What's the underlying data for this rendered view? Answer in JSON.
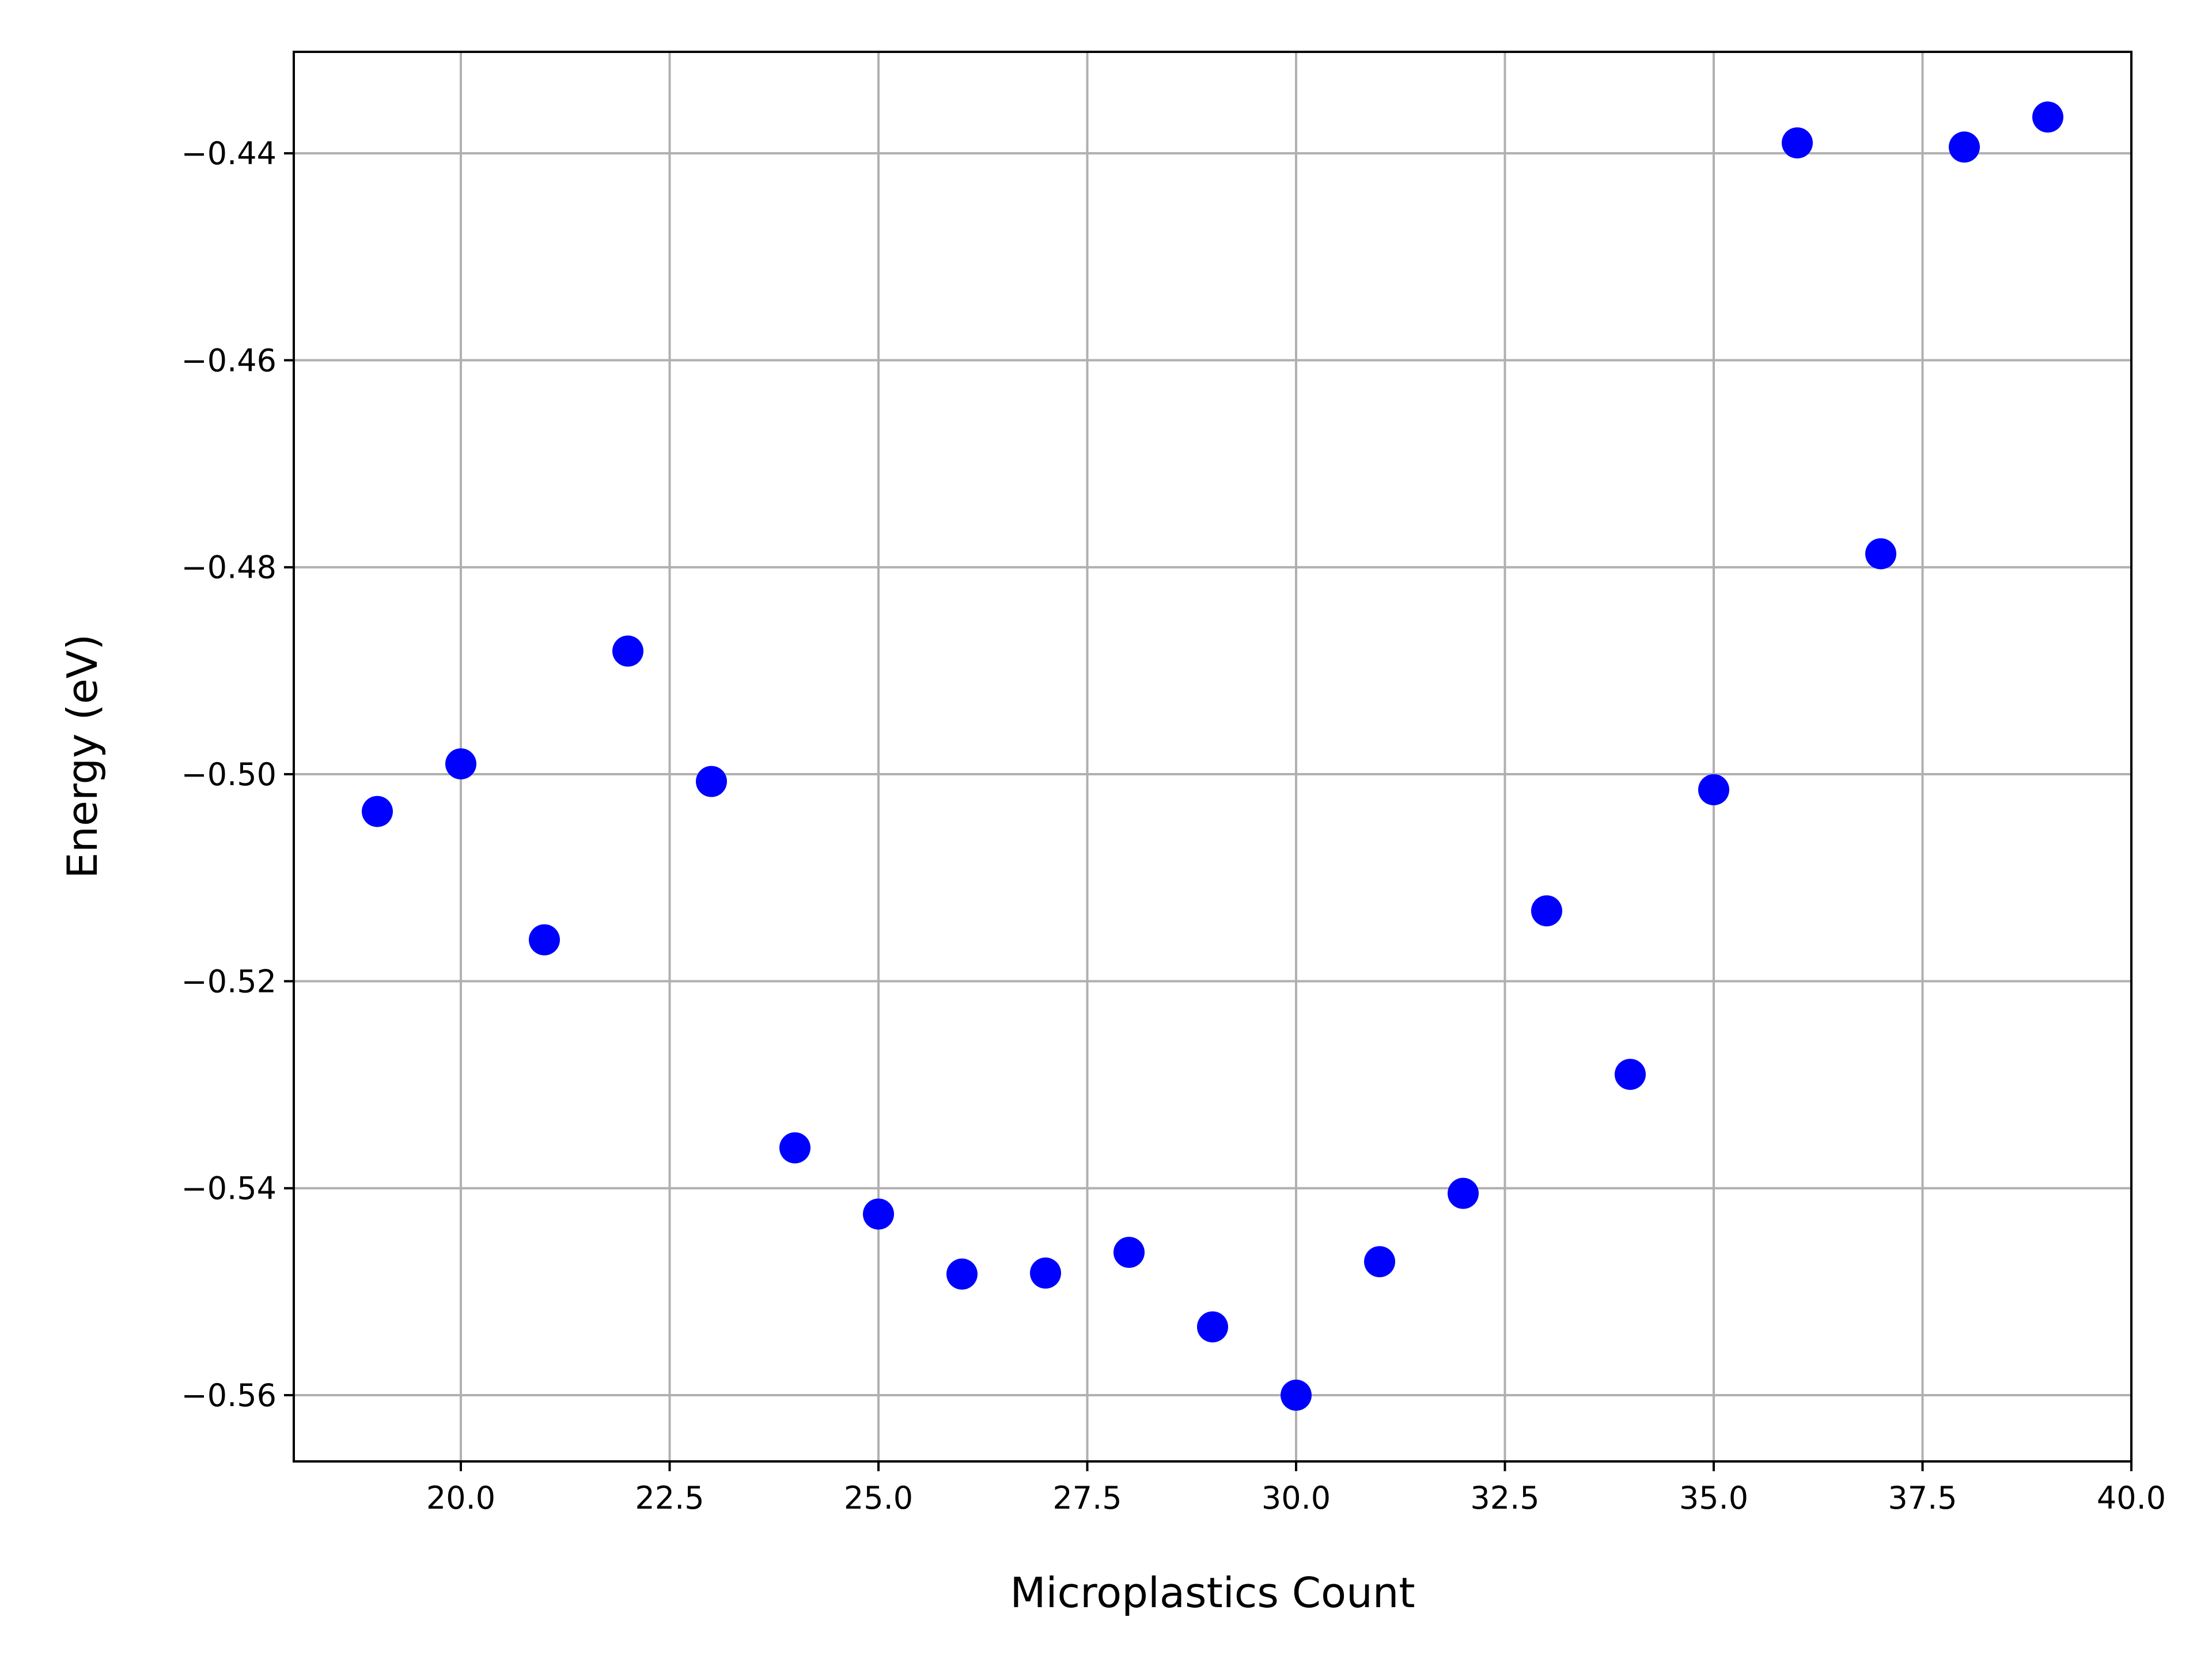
{
  "chart_data": {
    "type": "scatter",
    "xlabel": "Microplastics Count",
    "ylabel": "Energy (eV)",
    "xlim": [
      18,
      40
    ],
    "ylim": [
      -0.5664,
      -0.4302
    ],
    "x_ticks": [
      20.0,
      22.5,
      25.0,
      27.5,
      30.0,
      32.5,
      35.0,
      37.5,
      40.0
    ],
    "x_tick_labels": [
      "20.0",
      "22.5",
      "25.0",
      "27.5",
      "30.0",
      "32.5",
      "35.0",
      "37.5",
      "40.0"
    ],
    "y_ticks": [
      -0.44,
      -0.46,
      -0.48,
      -0.5,
      -0.52,
      -0.54,
      -0.56
    ],
    "y_tick_labels": [
      "−0.44",
      "−0.46",
      "−0.48",
      "−0.50",
      "−0.52",
      "−0.54",
      "−0.56"
    ],
    "grid": true,
    "marker_color": "#0000ff",
    "series": [
      {
        "x": [
          19,
          20,
          21,
          22,
          23,
          24,
          25,
          26,
          27,
          28,
          29,
          30,
          31,
          32,
          33,
          34,
          35,
          36,
          37,
          38,
          39
        ],
        "y": [
          -0.5036,
          -0.499,
          -0.516,
          -0.4881,
          -0.5007,
          -0.5361,
          -0.5425,
          -0.5483,
          -0.5482,
          -0.5462,
          -0.5534,
          -0.56,
          -0.5471,
          -0.5405,
          -0.5132,
          -0.529,
          -0.5015,
          -0.439,
          -0.4787,
          -0.4394,
          -0.4365
        ]
      }
    ]
  }
}
